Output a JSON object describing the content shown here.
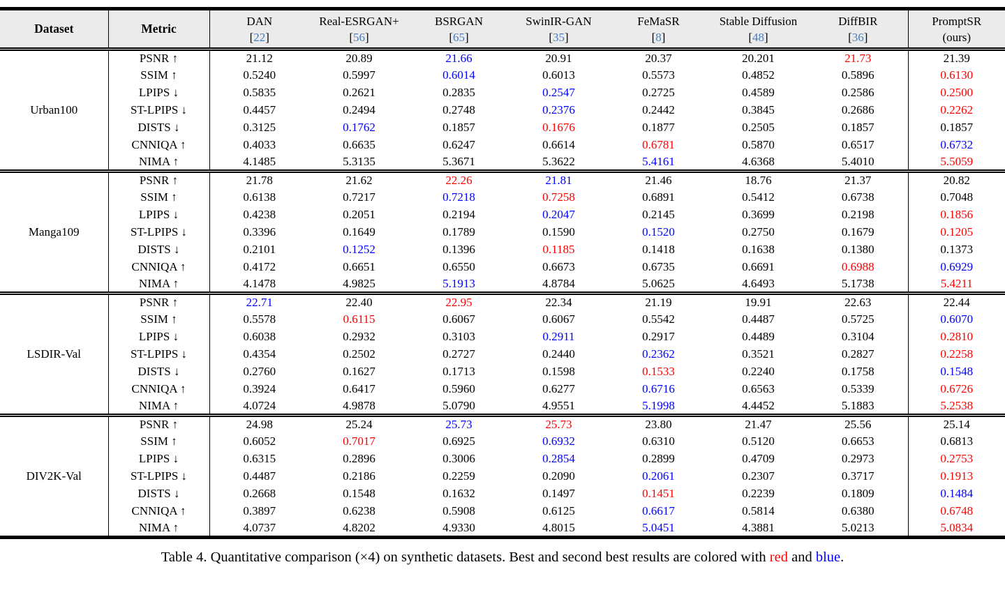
{
  "colors": {
    "best": "#ff0000",
    "second": "#0000ff",
    "cite": "#4a7cbf",
    "header_bg": "#ebebeb"
  },
  "table": {
    "header": {
      "dataset_label": "Dataset",
      "metric_label": "Metric",
      "models": [
        {
          "name": "DAN",
          "cite": "22"
        },
        {
          "name": "Real-ESRGAN+",
          "cite": "56"
        },
        {
          "name": "BSRGAN",
          "cite": "65"
        },
        {
          "name": "SwinIR-GAN",
          "cite": "35"
        },
        {
          "name": "FeMaSR",
          "cite": "8"
        },
        {
          "name": "Stable Diffusion",
          "cite": "48"
        },
        {
          "name": "DiffBIR",
          "cite": "36"
        },
        {
          "name": "PromptSR",
          "sub": "(ours)"
        }
      ]
    },
    "sections": [
      {
        "dataset": "Urban100",
        "rows": [
          {
            "metric": "PSNR",
            "arrow": "↑",
            "values": [
              "21.12",
              "20.89",
              "21.66",
              "20.91",
              "20.37",
              "20.201",
              "21.73",
              "21.39"
            ],
            "marks": [
              "",
              "",
              "b",
              "",
              "",
              "",
              "r",
              ""
            ]
          },
          {
            "metric": "SSIM",
            "arrow": "↑",
            "values": [
              "0.5240",
              "0.5997",
              "0.6014",
              "0.6013",
              "0.5573",
              "0.4852",
              "0.5896",
              "0.6130"
            ],
            "marks": [
              "",
              "",
              "b",
              "",
              "",
              "",
              "",
              "r"
            ]
          },
          {
            "metric": "LPIPS",
            "arrow": "↓",
            "values": [
              "0.5835",
              "0.2621",
              "0.2835",
              "0.2547",
              "0.2725",
              "0.4589",
              "0.2586",
              "0.2500"
            ],
            "marks": [
              "",
              "",
              "",
              "b",
              "",
              "",
              "",
              "r"
            ]
          },
          {
            "metric": "ST-LPIPS",
            "arrow": "↓",
            "values": [
              "0.4457",
              "0.2494",
              "0.2748",
              "0.2376",
              "0.2442",
              "0.3845",
              "0.2686",
              "0.2262"
            ],
            "marks": [
              "",
              "",
              "",
              "b",
              "",
              "",
              "",
              "r"
            ]
          },
          {
            "metric": "DISTS",
            "arrow": "↓",
            "values": [
              "0.3125",
              "0.1762",
              "0.1857",
              "0.1676",
              "0.1877",
              "0.2505",
              "0.1857",
              "0.1857"
            ],
            "marks": [
              "",
              "b",
              "",
              "r",
              "",
              "",
              "",
              ""
            ]
          },
          {
            "metric": "CNNIQA",
            "arrow": "↑",
            "values": [
              "0.4033",
              "0.6635",
              "0.6247",
              "0.6614",
              "0.6781",
              "0.5870",
              "0.6517",
              "0.6732"
            ],
            "marks": [
              "",
              "",
              "",
              "",
              "r",
              "",
              "",
              "b"
            ]
          },
          {
            "metric": "NIMA",
            "arrow": "↑",
            "values": [
              "4.1485",
              "5.3135",
              "5.3671",
              "5.3622",
              "5.4161",
              "4.6368",
              "5.4010",
              "5.5059"
            ],
            "marks": [
              "",
              "",
              "",
              "",
              "b",
              "",
              "",
              "r"
            ]
          }
        ]
      },
      {
        "dataset": "Manga109",
        "rows": [
          {
            "metric": "PSNR",
            "arrow": "↑",
            "values": [
              "21.78",
              "21.62",
              "22.26",
              "21.81",
              "21.46",
              "18.76",
              "21.37",
              "20.82"
            ],
            "marks": [
              "",
              "",
              "r",
              "b",
              "",
              "",
              "",
              ""
            ]
          },
          {
            "metric": "SSIM",
            "arrow": "↑",
            "values": [
              "0.6138",
              "0.7217",
              "0.7218",
              "0.7258",
              "0.6891",
              "0.5412",
              "0.6738",
              "0.7048"
            ],
            "marks": [
              "",
              "",
              "b",
              "r",
              "",
              "",
              "",
              ""
            ]
          },
          {
            "metric": "LPIPS",
            "arrow": "↓",
            "values": [
              "0.4238",
              "0.2051",
              "0.2194",
              "0.2047",
              "0.2145",
              "0.3699",
              "0.2198",
              "0.1856"
            ],
            "marks": [
              "",
              "",
              "",
              "b",
              "",
              "",
              "",
              "r"
            ]
          },
          {
            "metric": "ST-LPIPS",
            "arrow": "↓",
            "values": [
              "0.3396",
              "0.1649",
              "0.1789",
              "0.1590",
              "0.1520",
              "0.2750",
              "0.1679",
              "0.1205"
            ],
            "marks": [
              "",
              "",
              "",
              "",
              "b",
              "",
              "",
              "r"
            ]
          },
          {
            "metric": "DISTS",
            "arrow": "↓",
            "values": [
              "0.2101",
              "0.1252",
              "0.1396",
              "0.1185",
              "0.1418",
              "0.1638",
              "0.1380",
              "0.1373"
            ],
            "marks": [
              "",
              "b",
              "",
              "r",
              "",
              "",
              "",
              ""
            ]
          },
          {
            "metric": "CNNIQA",
            "arrow": "↑",
            "values": [
              "0.4172",
              "0.6651",
              "0.6550",
              "0.6673",
              "0.6735",
              "0.6691",
              "0.6988",
              "0.6929"
            ],
            "marks": [
              "",
              "",
              "",
              "",
              "",
              "",
              "r",
              "b"
            ]
          },
          {
            "metric": "NIMA",
            "arrow": "↑",
            "values": [
              "4.1478",
              "4.9825",
              "5.1913",
              "4.8784",
              "5.0625",
              "4.6493",
              "5.1738",
              "5.4211"
            ],
            "marks": [
              "",
              "",
              "b",
              "",
              "",
              "",
              "",
              "r"
            ]
          }
        ]
      },
      {
        "dataset": "LSDIR-Val",
        "rows": [
          {
            "metric": "PSNR",
            "arrow": "↑",
            "values": [
              "22.71",
              "22.40",
              "22.95",
              "22.34",
              "21.19",
              "19.91",
              "22.63",
              "22.44"
            ],
            "marks": [
              "b",
              "",
              "r",
              "",
              "",
              "",
              "",
              ""
            ]
          },
          {
            "metric": "SSIM",
            "arrow": "↑",
            "values": [
              "0.5578",
              "0.6115",
              "0.6067",
              "0.6067",
              "0.5542",
              "0.4487",
              "0.5725",
              "0.6070"
            ],
            "marks": [
              "",
              "r",
              "",
              "",
              "",
              "",
              "",
              "b"
            ]
          },
          {
            "metric": "LPIPS",
            "arrow": "↓",
            "values": [
              "0.6038",
              "0.2932",
              "0.3103",
              "0.2911",
              "0.2917",
              "0.4489",
              "0.3104",
              "0.2810"
            ],
            "marks": [
              "",
              "",
              "",
              "b",
              "",
              "",
              "",
              "r"
            ]
          },
          {
            "metric": "ST-LPIPS",
            "arrow": "↓",
            "values": [
              "0.4354",
              "0.2502",
              "0.2727",
              "0.2440",
              "0.2362",
              "0.3521",
              "0.2827",
              "0.2258"
            ],
            "marks": [
              "",
              "",
              "",
              "",
              "b",
              "",
              "",
              "r"
            ]
          },
          {
            "metric": "DISTS",
            "arrow": "↓",
            "values": [
              "0.2760",
              "0.1627",
              "0.1713",
              "0.1598",
              "0.1533",
              "0.2240",
              "0.1758",
              "0.1548"
            ],
            "marks": [
              "",
              "",
              "",
              "",
              "r",
              "",
              "",
              "b"
            ]
          },
          {
            "metric": "CNNIQA",
            "arrow": "↑",
            "values": [
              "0.3924",
              "0.6417",
              "0.5960",
              "0.6277",
              "0.6716",
              "0.6563",
              "0.5339",
              "0.6726"
            ],
            "marks": [
              "",
              "",
              "",
              "",
              "b",
              "",
              "",
              "r"
            ]
          },
          {
            "metric": "NIMA",
            "arrow": "↑",
            "values": [
              "4.0724",
              "4.9878",
              "5.0790",
              "4.9551",
              "5.1998",
              "4.4452",
              "5.1883",
              "5.2538"
            ],
            "marks": [
              "",
              "",
              "",
              "",
              "b",
              "",
              "",
              "r"
            ]
          }
        ]
      },
      {
        "dataset": "DIV2K-Val",
        "rows": [
          {
            "metric": "PSNR",
            "arrow": "↑",
            "values": [
              "24.98",
              "25.24",
              "25.73",
              "25.73",
              "23.80",
              "21.47",
              "25.56",
              "25.14"
            ],
            "marks": [
              "",
              "",
              "b",
              "r",
              "",
              "",
              "",
              ""
            ]
          },
          {
            "metric": "SSIM",
            "arrow": "↑",
            "values": [
              "0.6052",
              "0.7017",
              "0.6925",
              "0.6932",
              "0.6310",
              "0.5120",
              "0.6653",
              "0.6813"
            ],
            "marks": [
              "",
              "r",
              "",
              "b",
              "",
              "",
              "",
              ""
            ]
          },
          {
            "metric": "LPIPS",
            "arrow": "↓",
            "values": [
              "0.6315",
              "0.2896",
              "0.3006",
              "0.2854",
              "0.2899",
              "0.4709",
              "0.2973",
              "0.2753"
            ],
            "marks": [
              "",
              "",
              "",
              "b",
              "",
              "",
              "",
              "r"
            ]
          },
          {
            "metric": "ST-LPIPS",
            "arrow": "↓",
            "values": [
              "0.4487",
              "0.2186",
              "0.2259",
              "0.2090",
              "0.2061",
              "0.2307",
              "0.3717",
              "0.1913"
            ],
            "marks": [
              "",
              "",
              "",
              "",
              "b",
              "",
              "",
              "r"
            ]
          },
          {
            "metric": "DISTS",
            "arrow": "↓",
            "values": [
              "0.2668",
              "0.1548",
              "0.1632",
              "0.1497",
              "0.1451",
              "0.2239",
              "0.1809",
              "0.1484"
            ],
            "marks": [
              "",
              "",
              "",
              "",
              "r",
              "",
              "",
              "b"
            ]
          },
          {
            "metric": "CNNIQA",
            "arrow": "↑",
            "values": [
              "0.3897",
              "0.6238",
              "0.5908",
              "0.6125",
              "0.6617",
              "0.5814",
              "0.6380",
              "0.6748"
            ],
            "marks": [
              "",
              "",
              "",
              "",
              "b",
              "",
              "",
              "r"
            ]
          },
          {
            "metric": "NIMA",
            "arrow": "↑",
            "values": [
              "4.0737",
              "4.8202",
              "4.9330",
              "4.8015",
              "5.0451",
              "4.3881",
              "5.0213",
              "5.0834"
            ],
            "marks": [
              "",
              "",
              "",
              "",
              "b",
              "",
              "",
              "r"
            ]
          }
        ]
      }
    ]
  },
  "caption": {
    "text": "Table 4. Quantitative comparison (×4) on synthetic datasets. Best and second best results are colored with ",
    "red_word": "red",
    "and_text": " and ",
    "blue_word": "blue",
    "period": "."
  }
}
